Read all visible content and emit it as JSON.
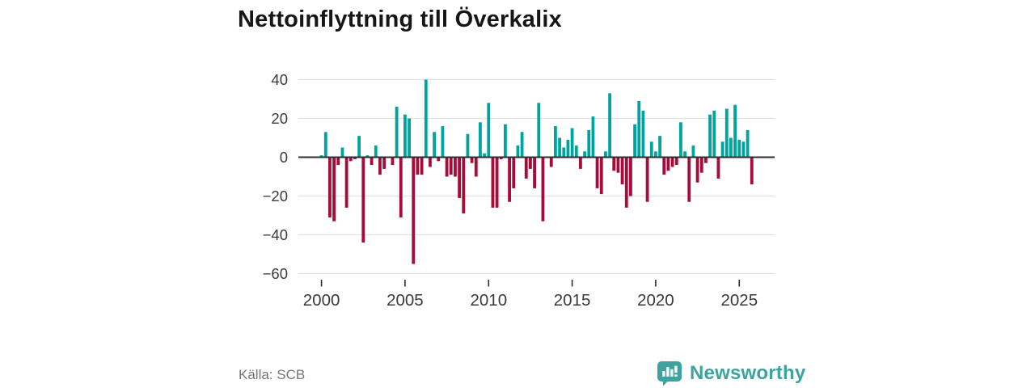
{
  "title": "Nettoinflyttning till Överkalix",
  "source": "Källa: SCB",
  "branding": {
    "name": "Newsworthy",
    "icon": "newsworthy-speech-bubble-bar-chart-icon"
  },
  "colors": {
    "positive": "#00A49E",
    "negative": "#A60B3A",
    "grid": "#E1E1E1",
    "axis": "#2E2E2E",
    "text": "#3A3A3A",
    "muted": "#757575",
    "brand": "#3EA39E",
    "title": "#161616",
    "background": "#FFFFFF"
  },
  "chart_data": {
    "type": "bar",
    "title": "Nettoinflyttning till Överkalix",
    "xlabel": "",
    "ylabel": "",
    "x_start": "2000Q1",
    "x_end": "2025Q4",
    "frequency": "quarterly",
    "ylim": [
      -60,
      40
    ],
    "grid": true,
    "legend": false,
    "x_tick_labels": [
      "2000",
      "2005",
      "2010",
      "2015",
      "2020",
      "2025"
    ],
    "y_tick_values": [
      40,
      20,
      0,
      -20,
      -40,
      -60
    ],
    "y_tick_labels": [
      "40",
      "20",
      "0",
      "−20",
      "−40",
      "−60"
    ],
    "series": [
      {
        "name": "Nettoinflyttning",
        "values": [
          1,
          13,
          -31,
          -33,
          -4,
          5,
          -26,
          -2,
          -1,
          11,
          -44,
          1,
          -4,
          6,
          -9,
          -6,
          0,
          -4,
          26,
          -31,
          22,
          20,
          -55,
          -9,
          -9,
          40,
          -5,
          13,
          -2,
          16,
          -10,
          -9,
          -10,
          -21,
          -29,
          12,
          -3,
          -10,
          18,
          2,
          28,
          -26,
          -26,
          -1,
          17,
          -23,
          -16,
          6,
          13,
          -11,
          -6,
          -16,
          28,
          -33,
          0,
          -5,
          16,
          10,
          5,
          9,
          15,
          6,
          -6,
          3,
          14,
          21,
          -16,
          -19,
          3,
          33,
          -7,
          -8,
          -14,
          -26,
          -20,
          17,
          29,
          24,
          -23,
          8,
          3,
          11,
          -9,
          -7,
          -5,
          -4,
          18,
          3,
          -23,
          6,
          -13,
          -8,
          -3,
          22,
          24,
          -11,
          8,
          25,
          10,
          27,
          9,
          8,
          14,
          -14
        ]
      }
    ]
  }
}
